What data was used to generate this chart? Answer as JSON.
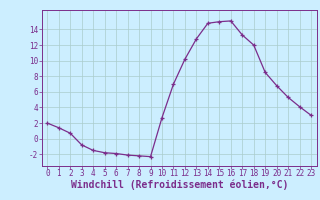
{
  "x": [
    0,
    1,
    2,
    3,
    4,
    5,
    6,
    7,
    8,
    9,
    10,
    11,
    12,
    13,
    14,
    15,
    16,
    17,
    18,
    19,
    20,
    21,
    22,
    23
  ],
  "y": [
    2,
    1.4,
    0.7,
    -0.8,
    -1.5,
    -1.8,
    -1.9,
    -2.1,
    -2.2,
    -2.3,
    2.7,
    7.0,
    10.2,
    12.8,
    14.8,
    15.0,
    15.1,
    13.3,
    12.0,
    8.5,
    6.8,
    5.3,
    4.1,
    3.0
  ],
  "line_color": "#7B2D8B",
  "marker": "+",
  "marker_size": 3,
  "bg_color": "#cceeff",
  "grid_color": "#aacccc",
  "yticks": [
    -2,
    0,
    2,
    4,
    6,
    8,
    10,
    12,
    14
  ],
  "ylabel_values": [
    "-2",
    "0",
    "2",
    "4",
    "6",
    "8",
    "10",
    "12",
    "14"
  ],
  "ylim": [
    -3.5,
    16.5
  ],
  "xlim": [
    -0.5,
    23.5
  ],
  "xlabel": "Windchill (Refroidissement éolien,°C)",
  "tick_fontsize": 5.5,
  "xlabel_fontsize": 7.0
}
